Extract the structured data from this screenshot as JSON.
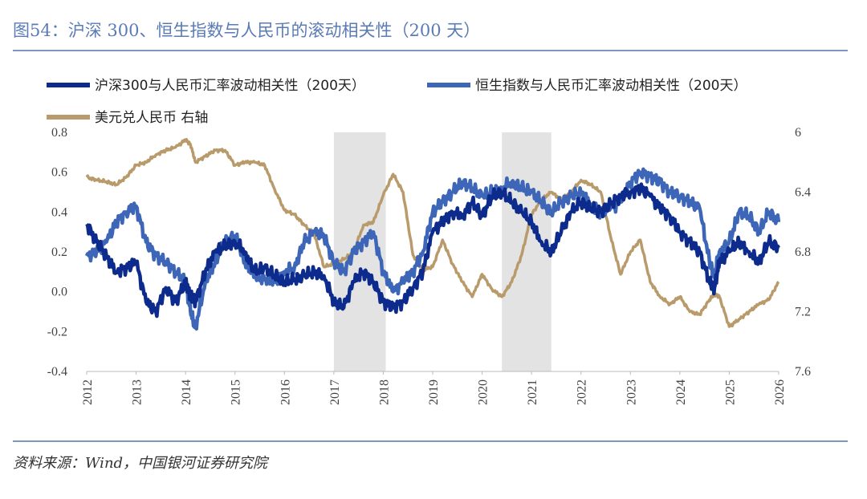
{
  "figure": {
    "title": "图54：沪深 300、恒生指数与人民币的滚动相关性（200 天）",
    "source": "资料来源：Wind，中国银河证券研究院"
  },
  "colors": {
    "series1": "#0d2b8c",
    "series2": "#3d66b8",
    "series3": "#b99b6b",
    "shade": "#e3e3e3",
    "rule": "#7f95c2"
  },
  "chart_data": {
    "type": "line",
    "title": "沪深 300、恒生指数与人民币的滚动相关性（200 天）",
    "xlabel": "",
    "ylabel": "",
    "x_ticks": [
      "2012",
      "2013",
      "2014",
      "2015",
      "2016",
      "2017",
      "2018",
      "2019",
      "2020",
      "2021",
      "2022",
      "2023",
      "2024",
      "2025",
      "2026"
    ],
    "ylim": [
      -0.4,
      0.8
    ],
    "y_ticks": [
      "0.8",
      "0.6",
      "0.4",
      "0.2",
      "0.0",
      "-0.2",
      "-0.4"
    ],
    "y2lim": [
      6,
      7.6
    ],
    "y2_inverted": true,
    "y2_ticks": [
      "6",
      "6.4",
      "6.8",
      "7.2",
      "7.6"
    ],
    "shaded_periods": [
      [
        2017.0,
        2018.05
      ],
      [
        2020.4,
        2021.4
      ]
    ],
    "series": [
      {
        "name": "沪深300与人民币汇率波动相关性（200天）",
        "axis": "left",
        "x": [
          2012.0,
          2012.2,
          2012.4,
          2012.6,
          2012.8,
          2013.0,
          2013.2,
          2013.4,
          2013.6,
          2013.8,
          2014.0,
          2014.1,
          2014.2,
          2014.4,
          2014.6,
          2014.8,
          2015.0,
          2015.2,
          2015.4,
          2015.6,
          2015.8,
          2016.0,
          2016.2,
          2016.4,
          2016.6,
          2016.8,
          2017.0,
          2017.2,
          2017.4,
          2017.6,
          2017.8,
          2018.0,
          2018.2,
          2018.4,
          2018.6,
          2018.8,
          2019.0,
          2019.2,
          2019.4,
          2019.6,
          2019.8,
          2020.0,
          2020.2,
          2020.4,
          2020.6,
          2020.8,
          2021.0,
          2021.2,
          2021.4,
          2021.6,
          2021.8,
          2022.0,
          2022.2,
          2022.4,
          2022.6,
          2022.8,
          2023.0,
          2023.2,
          2023.4,
          2023.6,
          2023.8,
          2024.0,
          2024.2,
          2024.4,
          2024.6,
          2024.7,
          2024.8,
          2025.0,
          2025.2,
          2025.4,
          2025.6,
          2025.8,
          2026.0
        ],
        "values": [
          0.34,
          0.25,
          0.18,
          0.1,
          0.12,
          0.15,
          -0.05,
          -0.1,
          0.02,
          -0.05,
          0.05,
          -0.02,
          -0.05,
          0.1,
          0.2,
          0.23,
          0.25,
          0.2,
          0.1,
          0.12,
          0.08,
          0.05,
          0.06,
          0.08,
          0.1,
          0.08,
          -0.05,
          -0.08,
          0.05,
          0.1,
          0.05,
          -0.05,
          -0.08,
          -0.05,
          0.02,
          0.1,
          0.3,
          0.35,
          0.4,
          0.38,
          0.45,
          0.38,
          0.48,
          0.5,
          0.45,
          0.4,
          0.35,
          0.25,
          0.2,
          0.3,
          0.4,
          0.45,
          0.42,
          0.4,
          0.44,
          0.48,
          0.5,
          0.52,
          0.48,
          0.42,
          0.38,
          0.3,
          0.25,
          0.2,
          0.05,
          0.02,
          0.15,
          0.2,
          0.25,
          0.2,
          0.15,
          0.25,
          0.22
        ]
      },
      {
        "name": "恒生指数与人民币汇率波动相关性（200天）",
        "axis": "left",
        "x": [
          2012.0,
          2012.2,
          2012.4,
          2012.6,
          2012.8,
          2013.0,
          2013.2,
          2013.4,
          2013.6,
          2013.8,
          2014.0,
          2014.1,
          2014.2,
          2014.4,
          2014.6,
          2014.8,
          2015.0,
          2015.2,
          2015.4,
          2015.6,
          2015.8,
          2016.0,
          2016.2,
          2016.4,
          2016.6,
          2016.8,
          2017.0,
          2017.2,
          2017.4,
          2017.6,
          2017.8,
          2018.0,
          2018.2,
          2018.4,
          2018.6,
          2018.8,
          2019.0,
          2019.2,
          2019.4,
          2019.6,
          2019.8,
          2020.0,
          2020.2,
          2020.4,
          2020.6,
          2020.8,
          2021.0,
          2021.2,
          2021.4,
          2021.6,
          2021.8,
          2022.0,
          2022.2,
          2022.4,
          2022.6,
          2022.8,
          2023.0,
          2023.2,
          2023.4,
          2023.6,
          2023.8,
          2024.0,
          2024.2,
          2024.4,
          2024.6,
          2024.7,
          2024.8,
          2025.0,
          2025.2,
          2025.4,
          2025.6,
          2025.8,
          2026.0
        ],
        "values": [
          0.18,
          0.2,
          0.25,
          0.35,
          0.4,
          0.43,
          0.25,
          0.18,
          0.15,
          0.1,
          0.05,
          -0.1,
          -0.18,
          0.05,
          0.15,
          0.25,
          0.28,
          0.15,
          0.08,
          0.06,
          0.05,
          0.1,
          0.12,
          0.25,
          0.3,
          0.28,
          0.15,
          0.1,
          0.2,
          0.25,
          0.3,
          0.1,
          0.0,
          0.05,
          0.1,
          0.2,
          0.4,
          0.45,
          0.5,
          0.55,
          0.52,
          0.48,
          0.5,
          0.52,
          0.55,
          0.52,
          0.5,
          0.45,
          0.4,
          0.45,
          0.48,
          0.5,
          0.44,
          0.4,
          0.42,
          0.45,
          0.55,
          0.6,
          0.58,
          0.55,
          0.5,
          0.48,
          0.45,
          0.42,
          0.15,
          0.08,
          0.2,
          0.25,
          0.4,
          0.38,
          0.3,
          0.4,
          0.35
        ]
      },
      {
        "name": "美元兑人民币 右轴",
        "axis": "right",
        "x": [
          2012.0,
          2012.2,
          2012.4,
          2012.6,
          2012.8,
          2013.0,
          2013.2,
          2013.4,
          2013.6,
          2013.8,
          2014.0,
          2014.1,
          2014.2,
          2014.4,
          2014.6,
          2014.8,
          2015.0,
          2015.2,
          2015.4,
          2015.6,
          2015.8,
          2016.0,
          2016.2,
          2016.4,
          2016.6,
          2016.8,
          2017.0,
          2017.2,
          2017.4,
          2017.6,
          2017.8,
          2018.0,
          2018.2,
          2018.4,
          2018.6,
          2018.8,
          2019.0,
          2019.2,
          2019.4,
          2019.6,
          2019.8,
          2020.0,
          2020.2,
          2020.4,
          2020.6,
          2020.8,
          2021.0,
          2021.2,
          2021.4,
          2021.6,
          2021.8,
          2022.0,
          2022.2,
          2022.4,
          2022.6,
          2022.8,
          2023.0,
          2023.2,
          2023.4,
          2023.6,
          2023.8,
          2024.0,
          2024.2,
          2024.4,
          2024.6,
          2024.7,
          2024.8,
          2025.0,
          2025.2,
          2025.4,
          2025.6,
          2025.8,
          2026.0
        ],
        "values": [
          6.3,
          6.32,
          6.33,
          6.35,
          6.3,
          6.22,
          6.2,
          6.15,
          6.12,
          6.1,
          6.05,
          6.08,
          6.2,
          6.16,
          6.12,
          6.12,
          6.22,
          6.2,
          6.2,
          6.22,
          6.38,
          6.52,
          6.55,
          6.62,
          6.68,
          6.9,
          6.88,
          6.85,
          6.8,
          6.62,
          6.6,
          6.42,
          6.28,
          6.4,
          6.82,
          6.92,
          6.9,
          6.72,
          6.88,
          7.0,
          7.1,
          6.95,
          7.05,
          7.1,
          7.0,
          6.82,
          6.55,
          6.45,
          6.4,
          6.45,
          6.4,
          6.32,
          6.35,
          6.4,
          6.7,
          6.95,
          6.8,
          6.72,
          7.0,
          7.1,
          7.15,
          7.1,
          7.2,
          7.22,
          7.12,
          7.08,
          7.1,
          7.3,
          7.25,
          7.2,
          7.15,
          7.12,
          7.0
        ]
      }
    ]
  }
}
